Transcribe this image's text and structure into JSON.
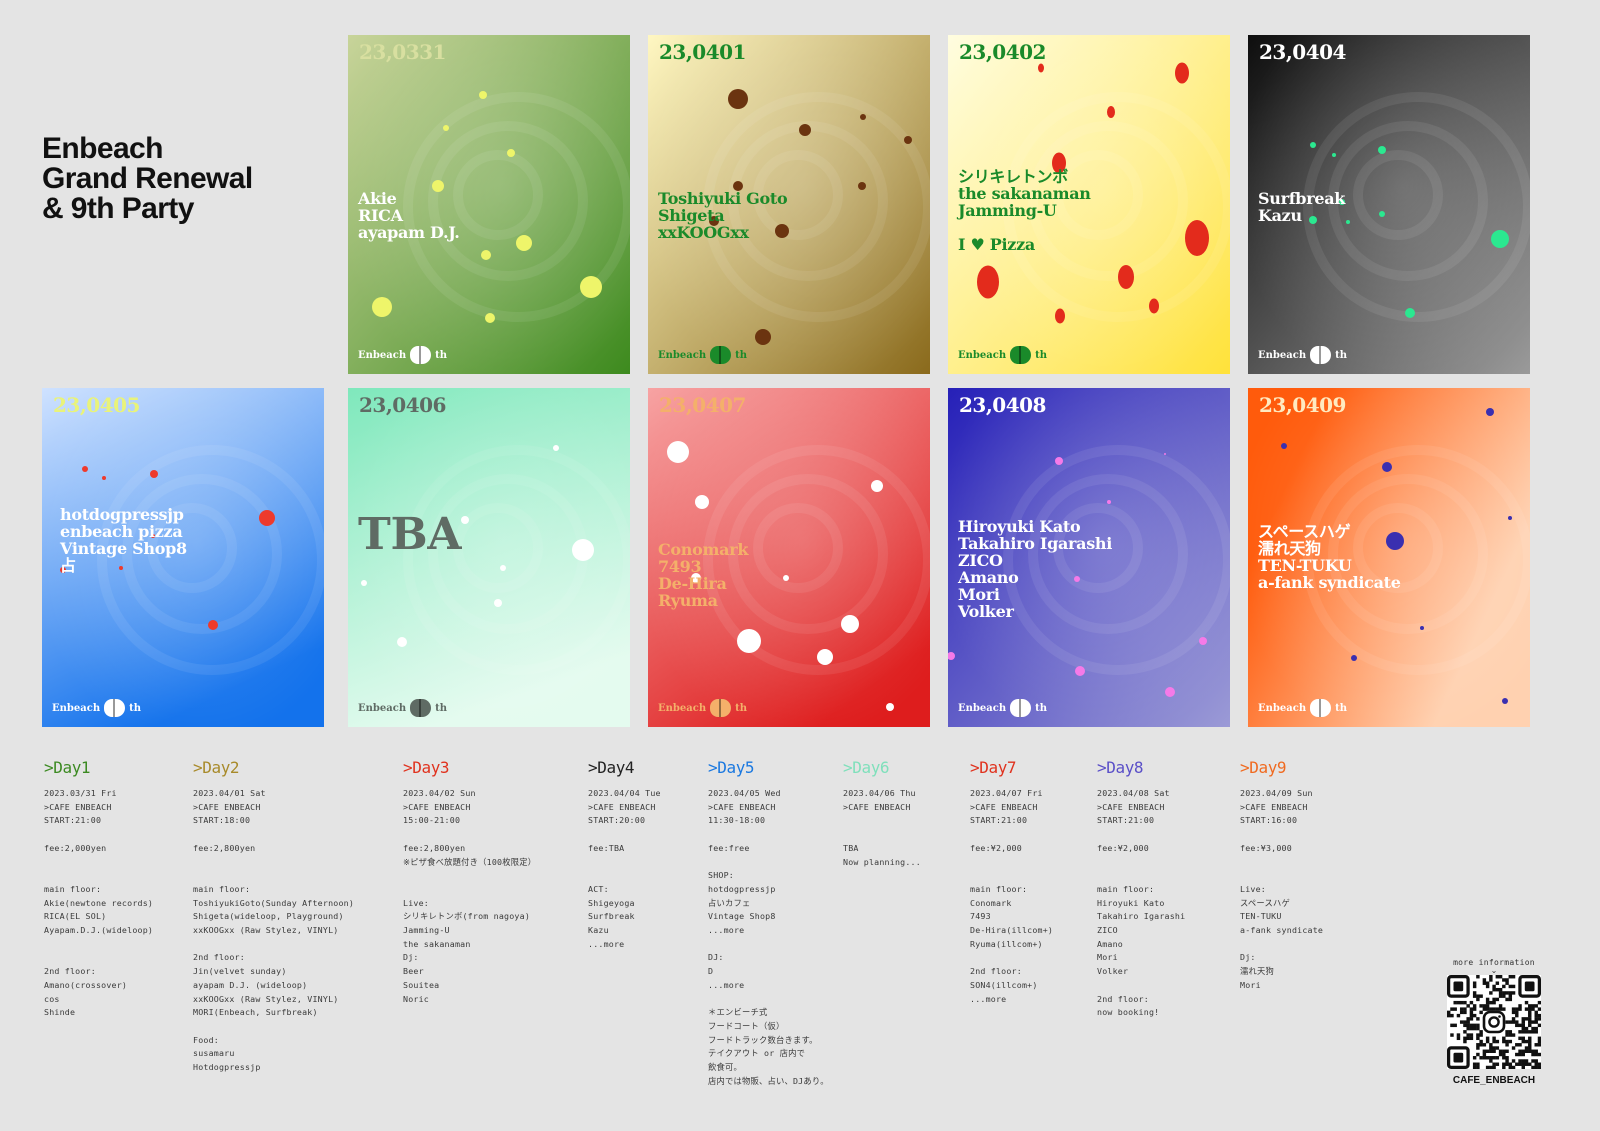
{
  "title_lines": [
    "Enbeach",
    "Grand Renewal",
    "& 9th Party"
  ],
  "posters": [
    {
      "date": "23,0331",
      "lines": [
        "Akie",
        "RICA",
        "ayapam D.J."
      ],
      "theme": "green",
      "logo": "Enbeach",
      "logo_suffix": "th",
      "date_color": "#d8dfa0",
      "text_color": "#ffffff",
      "dot_color": "#eef56a",
      "bg_from": "#c8d49a",
      "bg_to": "#3d8a1e"
    },
    {
      "date": "23,0401",
      "lines": [
        "Toshiyuki Goto",
        "Shigeta",
        "xxKOOGxx"
      ],
      "theme": "gold",
      "logo": "Enbeach",
      "logo_suffix": "th",
      "date_color": "#1a8a2a",
      "text_color": "#1a8a2a",
      "dot_color": "#6b3410",
      "bg_from": "#fff7c2",
      "bg_to": "#8a6a1c"
    },
    {
      "date": "23,0402",
      "lines": [
        "シリキレトンボ",
        "the sakanaman",
        "Jamming-U",
        "",
        "I ♥ Pizza"
      ],
      "theme": "yellow",
      "logo": "Enbeach",
      "logo_suffix": "th",
      "date_color": "#1a8a2a",
      "text_color": "#1a8a2a",
      "dot_color": "#e32b1c",
      "bg_from": "#fffde0",
      "bg_to": "#ffe23a"
    },
    {
      "date": "23,0404",
      "lines": [
        "Surfbreak",
        "Kazu"
      ],
      "theme": "gray",
      "logo": "Enbeach",
      "logo_suffix": "th",
      "date_color": "#ffffff",
      "text_color": "#ffffff",
      "dot_color": "#2be890",
      "bg_from": "#0e0e0e",
      "bg_to": "#9a9a9a"
    },
    {
      "date": "23,0405",
      "lines": [
        "hotdogpressjp",
        "enbeach pizza",
        "Vintage Shop8",
        "占"
      ],
      "theme": "blue",
      "logo": "Enbeach",
      "logo_suffix": "th",
      "date_color": "#e9f37a",
      "text_color": "#ffffff",
      "dot_color": "#ee3a2c",
      "bg_from": "#cfe2ff",
      "bg_to": "#1372ec"
    },
    {
      "date": "23,0406",
      "lines": [
        "TBA"
      ],
      "theme": "mint",
      "logo": "Enbeach",
      "logo_suffix": "th",
      "date_color": "#5f6b64",
      "text_color": "#5f6b64",
      "dot_color": "#ffffff",
      "bg_from": "#7fe8bc",
      "bg_to": "#e4fbef"
    },
    {
      "date": "23,0407",
      "lines": [
        "Conomark",
        "7493",
        "De-Hira",
        "Ryuma"
      ],
      "theme": "red",
      "logo": "Enbeach",
      "logo_suffix": "th",
      "date_color": "#f4b06a",
      "text_color": "#f4b06a",
      "dot_color": "#ffffff",
      "bg_from": "#f7a3a3",
      "bg_to": "#de1d1d"
    },
    {
      "date": "23,0408",
      "lines": [
        "Hiroyuki Kato",
        "Takahiro Igarashi",
        "ZICO",
        "Amano",
        "Mori",
        "Volker"
      ],
      "theme": "indigo",
      "logo": "Enbeach",
      "logo_suffix": "th",
      "date_color": "#ffffff",
      "text_color": "#ffffff",
      "dot_color": "#f57ae8",
      "bg_from": "#2620b8",
      "bg_to": "#9b9ad6"
    },
    {
      "date": "23,0409",
      "lines": [
        "スペースハゲ",
        "濡れ天狗",
        "TEN-TUKU",
        "a-fank syndicate"
      ],
      "theme": "orange",
      "logo": "Enbeach",
      "logo_suffix": "th",
      "date_color": "#ffeac0",
      "text_color": "#ffffff",
      "dot_color": "#3a2fb0",
      "bg_from": "#ff5b0c",
      "bg_to": "#ffd1b0"
    }
  ],
  "days": [
    {
      "head": ">Day1",
      "color": "#3c8a22",
      "body": "2023.03/31 Fri\n>CAFE ENBEACH\nSTART:21:00\n\nfee:2,000yen\n\n\nmain floor:\nAkie(newtone records)\nRICA(EL SOL)\nAyapam.D.J.(wideloop)\n\n\n2nd floor:\nAmano(crossover)\ncos\nShinde"
    },
    {
      "head": ">Day2",
      "color": "#a88a2a",
      "body": "2023.04/01 Sat\n>CAFE ENBEACH\nSTART:18:00\n\nfee:2,800yen\n\n\nmain floor:\nToshiyukiGoto(Sunday Afternoon)\nShigeta(wideloop, Playground)\nxxKOOGxx (Raw Stylez, VINYL)\n\n2nd floor:\nJin(velvet sunday)\nayapam D.J. (wideloop)\nxxKOOGxx (Raw Stylez, VINYL)\nMORI(Enbeach, Surfbreak)\n\nFood:\nsusamaru\nHotdogpressjp"
    },
    {
      "head": ">Day3",
      "color": "#e0321e",
      "body": "2023.04/02 Sun\n>CAFE ENBEACH\n15:00-21:00\n\nfee:2,800yen\n※ピザ食べ放題付き（100枚限定）\n\n\nLive:\nシリキレトンボ(from nagoya)\nJamming-U\nthe sakanaman\nDj:\nBeer\nSouitea\nNoric"
    },
    {
      "head": ">Day4",
      "color": "#222222",
      "body": "2023.04/04 Tue\n>CAFE ENBEACH\nSTART:20:00\n\nfee:TBA\n\n\nACT:\nShigeyoga\nSurfbreak\nKazu\n...more"
    },
    {
      "head": ">Day5",
      "color": "#1a78e0",
      "body": "2023.04/05 Wed\n>CAFE ENBEACH\n11:30-18:00\n\nfee:free\n\nSHOP:\nhotdogpressjp\n占いカフェ\nVintage Shop8\n...more\n\nDJ:\nD\n...more\n\n＊エンビーチ式\nフードコート（仮）\nフードトラック数台きます。\nテイクアウト or 店内で\n飲食可。\n店内では物販、占い、DJあり。"
    },
    {
      "head": ">Day6",
      "color": "#7fe0bb",
      "body": "2023.04/06 Thu\n>CAFE ENBEACH\n\n\nTBA\nNow planning..."
    },
    {
      "head": ">Day7",
      "color": "#e0321e",
      "body": "2023.04/07 Fri\n>CAFE ENBEACH\nSTART:21:00\n\nfee:¥2,000\n\n\nmain floor:\nConomark\n7493\nDe-Hira(illcom+)\nRyuma(illcom+)\n\n2nd floor:\nSON4(illcom+)\n...more"
    },
    {
      "head": ">Day8",
      "color": "#5a4fc8",
      "body": "2023.04/08 Sat\n>CAFE ENBEACH\nSTART:21:00\n\nfee:¥2,000\n\n\nmain floor:\nHiroyuki Kato\nTakahiro Igarashi\nZICO\nAmano\nMori\nVolker\n\n2nd floor:\nnow booking!"
    },
    {
      "head": ">Day9",
      "color": "#f06a20",
      "body": "2023.04/09 Sun\n>CAFE ENBEACH\nSTART:16:00\n\nfee:¥3,000\n\n\nLive:\nスペースハゲ\nTEN-TUKU\na-fank syndicate\n\nDj:\n濡れ天狗\nMori"
    }
  ],
  "qr": {
    "title": "more information",
    "arrow": "⌄",
    "caption": "CAFE_ENBEACH",
    "icon": "instagram-icon"
  }
}
